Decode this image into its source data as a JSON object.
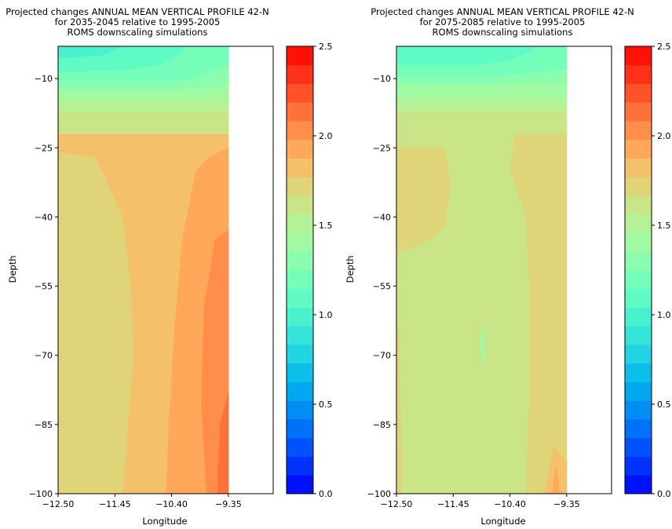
{
  "chart_data": [
    {
      "type": "contour",
      "title_lines": [
        "Projected changes ANNUAL MEAN VERTICAL PROFILE 42-N",
        "for 2035-2045 relative to 1995-2005",
        "ROMS downscaling simulations"
      ],
      "xlabel": "Longitude",
      "ylabel": "Depth",
      "xlim": [
        -12.5,
        -8.52
      ],
      "ylim": [
        -100,
        -3
      ],
      "xticks": [
        "−12.50",
        "−11.45",
        "−10.40",
        "−9.35"
      ],
      "xtick_values": [
        -12.5,
        -11.45,
        -10.4,
        -9.35
      ],
      "yticks": [
        "−10",
        "−25",
        "−40",
        "−55",
        "−70",
        "−85",
        "−100"
      ],
      "ytick_values": [
        -10,
        -25,
        -40,
        -55,
        -70,
        -85,
        -100
      ],
      "data_x_max": -9.35,
      "colorbar": {
        "ticks": [
          "0.0",
          "0.5",
          "1.0",
          "1.5",
          "2.0",
          "2.5"
        ],
        "tick_values": [
          0,
          0.5,
          1.0,
          1.5,
          2.0,
          2.5
        ],
        "levels": 24,
        "range": [
          0,
          2.5
        ],
        "colormap": "rainbow"
      },
      "regions": [
        {
          "band": 3,
          "poly": [
            [
              -12.5,
              -100
            ],
            [
              -9.35,
              -100
            ],
            [
              -9.35,
              -3
            ],
            [
              -12.5,
              -3
            ]
          ]
        },
        {
          "band": 4,
          "poly": [
            [
              -11.3,
              -100
            ],
            [
              -9.35,
              -100
            ],
            [
              -9.35,
              -20
            ],
            [
              -12.5,
              -20
            ],
            [
              -12.5,
              -26
            ],
            [
              -11.8,
              -27
            ],
            [
              -11.3,
              -40
            ],
            [
              -11.15,
              -55
            ],
            [
              -11.1,
              -70
            ],
            [
              -11.2,
              -85
            ]
          ]
        },
        {
          "band": 5,
          "poly": [
            [
              -10.5,
              -100
            ],
            [
              -9.35,
              -100
            ],
            [
              -9.35,
              -25
            ],
            [
              -9.7,
              -27
            ],
            [
              -9.95,
              -30
            ],
            [
              -10.2,
              -45
            ],
            [
              -10.35,
              -65
            ],
            [
              -10.45,
              -85
            ]
          ]
        },
        {
          "band": 6,
          "poly": [
            [
              -9.75,
              -100
            ],
            [
              -9.35,
              -100
            ],
            [
              -9.35,
              -43
            ],
            [
              -9.6,
              -45
            ],
            [
              -9.8,
              -60
            ],
            [
              -9.85,
              -80
            ]
          ]
        },
        {
          "band": 7,
          "poly": [
            [
              -9.55,
              -100
            ],
            [
              -9.35,
              -100
            ],
            [
              -9.35,
              -78
            ],
            [
              -9.5,
              -85
            ]
          ]
        },
        {
          "band": 3,
          "poly": [
            [
              -12.5,
              -100
            ],
            [
              -12.3,
              -100
            ],
            [
              -12.4,
              -88
            ],
            [
              -12.5,
              -85
            ]
          ]
        },
        {
          "band": 2,
          "poly": [
            [
              -12.5,
              -22
            ],
            [
              -9.35,
              -22
            ],
            [
              -9.35,
              -3
            ],
            [
              -12.5,
              -3
            ]
          ]
        },
        {
          "band": 1,
          "poly": [
            [
              -12.5,
              -17
            ],
            [
              -9.35,
              -17
            ],
            [
              -9.35,
              -3
            ],
            [
              -12.5,
              -3
            ]
          ]
        },
        {
          "band": 0,
          "poly": [
            [
              -12.5,
              -14.5
            ],
            [
              -9.35,
              -14.5
            ],
            [
              -9.35,
              -3
            ],
            [
              -12.5,
              -3
            ]
          ]
        },
        {
          "band": -1,
          "poly": [
            [
              -12.5,
              -12.5
            ],
            [
              -10.4,
              -12.5
            ],
            [
              -9.7,
              -12
            ],
            [
              -9.35,
              -11
            ],
            [
              -9.35,
              -3
            ],
            [
              -12.5,
              -3
            ]
          ]
        },
        {
          "band": -2,
          "poly": [
            [
              -12.5,
              -10.5
            ],
            [
              -10.6,
              -10.5
            ],
            [
              -10.0,
              -10
            ],
            [
              -9.6,
              -8
            ],
            [
              -9.35,
              -7
            ],
            [
              -9.35,
              -3
            ],
            [
              -12.5,
              -3
            ]
          ]
        },
        {
          "band": -3,
          "poly": [
            [
              -12.5,
              -8.5
            ],
            [
              -11.2,
              -8
            ],
            [
              -10.6,
              -7
            ],
            [
              -10.3,
              -5
            ],
            [
              -10.1,
              -3
            ],
            [
              -12.5,
              -3
            ]
          ]
        },
        {
          "band": -4,
          "poly": [
            [
              -12.5,
              -5.5
            ],
            [
              -11.7,
              -5
            ],
            [
              -11.3,
              -3
            ],
            [
              -12.5,
              -3
            ]
          ]
        }
      ]
    },
    {
      "type": "contour",
      "title_lines": [
        "Projected changes ANNUAL MEAN VERTICAL PROFILE 42-N",
        "for 2075-2085 relative to 1995-2005",
        "ROMS downscaling simulations"
      ],
      "xlabel": "Longitude",
      "ylabel": "Depth",
      "xlim": [
        -12.5,
        -8.52
      ],
      "ylim": [
        -100,
        -3
      ],
      "xticks": [
        "−12.50",
        "−11.45",
        "−10.40",
        "−9.35"
      ],
      "xtick_values": [
        -12.5,
        -11.45,
        -10.4,
        -9.35
      ],
      "yticks": [
        "−10",
        "−25",
        "−40",
        "−55",
        "−70",
        "−85",
        "−100"
      ],
      "ytick_values": [
        -10,
        -25,
        -40,
        -55,
        -70,
        -85,
        -100
      ],
      "data_x_max": -9.35,
      "colorbar": {
        "ticks": [
          "0.0",
          "0.5",
          "1.0",
          "1.5",
          "2.0",
          "2.5"
        ],
        "tick_values": [
          0,
          0.5,
          1.0,
          1.5,
          2.0,
          2.5
        ],
        "levels": 24,
        "range": [
          0,
          2.5
        ],
        "colormap": "rainbow"
      },
      "regions": [
        {
          "band": 2,
          "poly": [
            [
              -12.5,
              -100
            ],
            [
              -9.35,
              -100
            ],
            [
              -9.35,
              -3
            ],
            [
              -12.5,
              -3
            ]
          ]
        },
        {
          "band": 3,
          "poly": [
            [
              -12.5,
              -100
            ],
            [
              -12.4,
              -100
            ],
            [
              -12.45,
              -65
            ],
            [
              -12.5,
              -63
            ]
          ]
        },
        {
          "band": 3,
          "poly": [
            [
              -12.5,
              -48
            ],
            [
              -11.9,
              -45
            ],
            [
              -11.6,
              -42
            ],
            [
              -11.5,
              -33
            ],
            [
              -11.6,
              -25
            ],
            [
              -12.5,
              -25
            ]
          ]
        },
        {
          "band": 3,
          "poly": [
            [
              -10.1,
              -100
            ],
            [
              -9.35,
              -100
            ],
            [
              -9.35,
              -22
            ],
            [
              -10.3,
              -22
            ],
            [
              -10.4,
              -30
            ],
            [
              -10.1,
              -40
            ],
            [
              -10.05,
              -55
            ],
            [
              -10.05,
              -80
            ]
          ]
        },
        {
          "band": 4,
          "poly": [
            [
              -9.75,
              -100
            ],
            [
              -9.35,
              -100
            ],
            [
              -9.35,
              -93
            ],
            [
              -9.6,
              -90
            ]
          ]
        },
        {
          "band": 5,
          "poly": [
            [
              -9.62,
              -100
            ],
            [
              -9.48,
              -100
            ],
            [
              -9.55,
              -94
            ]
          ]
        },
        {
          "band": 2,
          "poly": [
            [
              -12.5,
              -22
            ],
            [
              -9.35,
              -22
            ],
            [
              -9.35,
              -3
            ],
            [
              -12.5,
              -3
            ]
          ]
        },
        {
          "band": 1,
          "poly": [
            [
              -12.5,
              -17
            ],
            [
              -9.35,
              -17
            ],
            [
              -9.35,
              -3
            ],
            [
              -12.5,
              -3
            ]
          ]
        },
        {
          "band": 0,
          "poly": [
            [
              -12.5,
              -14.5
            ],
            [
              -9.35,
              -14.5
            ],
            [
              -9.35,
              -3
            ],
            [
              -12.5,
              -3
            ]
          ]
        },
        {
          "band": -1,
          "poly": [
            [
              -12.5,
              -11.5
            ],
            [
              -9.35,
              -11
            ],
            [
              -9.35,
              -3
            ],
            [
              -12.5,
              -3
            ]
          ]
        },
        {
          "band": -2,
          "poly": [
            [
              -12.5,
              -9.5
            ],
            [
              -10.6,
              -9.5
            ],
            [
              -9.9,
              -8.5
            ],
            [
              -9.35,
              -8
            ],
            [
              -9.35,
              -3
            ],
            [
              -12.5,
              -3
            ]
          ]
        },
        {
          "band": -3,
          "poly": [
            [
              -12.5,
              -7
            ],
            [
              -11.0,
              -7
            ],
            [
              -10.4,
              -6
            ],
            [
              -10.0,
              -4
            ],
            [
              -9.9,
              -3
            ],
            [
              -12.5,
              -3
            ]
          ]
        },
        {
          "band": 0,
          "poly": [
            [
              -10.95,
              -68
            ],
            [
              -10.9,
              -63
            ],
            [
              -10.87,
              -68
            ],
            [
              -10.9,
              -73
            ]
          ]
        }
      ]
    }
  ]
}
